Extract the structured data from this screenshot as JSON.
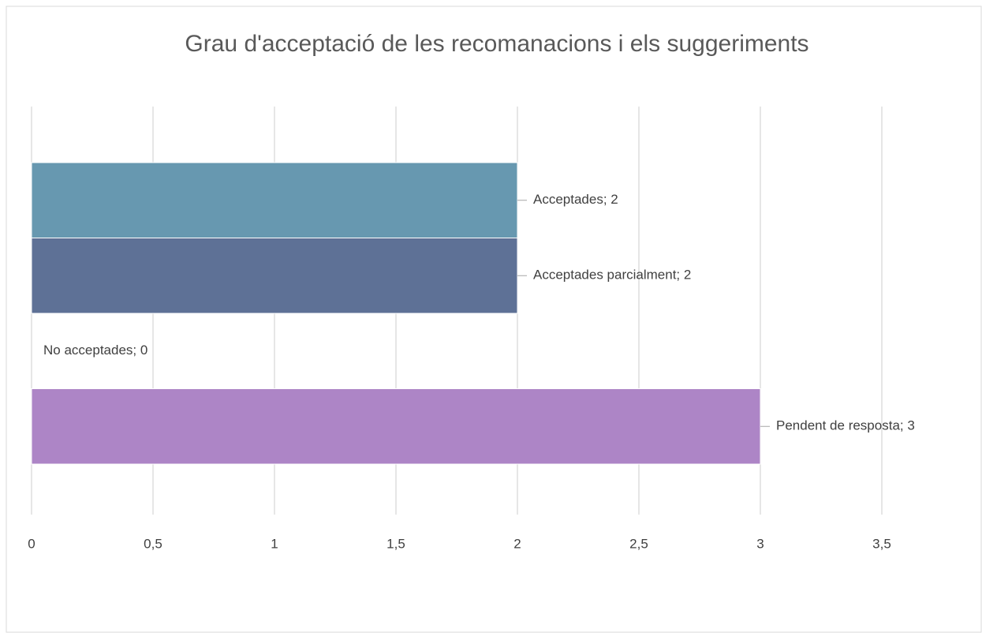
{
  "chart_data": {
    "type": "hbar",
    "title": "Grau d'acceptació de les recomanacions i els suggeriments",
    "values": [
      2,
      2,
      0,
      3
    ],
    "value_labels": [
      "Acceptades; 2",
      "Acceptades parcialment; 2",
      "No acceptades; 0",
      "Pendent de resposta; 3"
    ],
    "colors": [
      "#6798b0",
      "#5e7196",
      "#8fa0c0",
      "#ad85c6"
    ],
    "xlim": [
      0,
      3.5
    ],
    "xticks": [
      0,
      {
        "value": 0.5,
        "label": "0,5"
      },
      1,
      {
        "value": 1.5,
        "label": "1,5"
      },
      2,
      {
        "value": 2.5,
        "label": "2,5"
      },
      3,
      {
        "value": 3.5,
        "label": "3,5"
      }
    ],
    "grid": true
  }
}
